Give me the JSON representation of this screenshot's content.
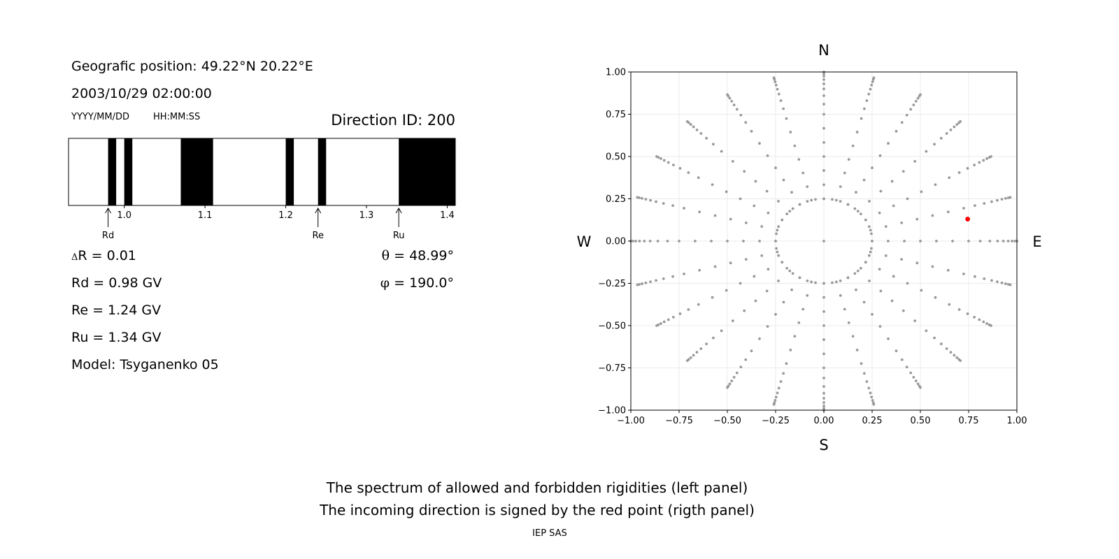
{
  "info": {
    "position": "Geografic position: 49.22°N 20.22°E",
    "datetime": "2003/10/29 02:00:00",
    "date_format": "YYYY/MM/DD",
    "time_format": "HH:MM:SS",
    "direction_id": "Direction ID: 200",
    "delta_r": "R = 0.01",
    "delta_symbol": "Δ",
    "rd": "Rd = 0.98 GV",
    "re": "Re = 1.24 GV",
    "ru": "Ru = 1.34 GV",
    "model": "Model: Tsyganenko 05",
    "theta_symbol": "θ",
    "theta_value": " = 48.99°",
    "phi_symbol": "φ",
    "phi_value": " = 190.0°"
  },
  "footer": {
    "line1": "The spectrum of allowed and forbidden rigidities (left panel)",
    "line2": "The incoming direction is signed by the red point (rigth panel)",
    "credit": "IEP SAS"
  },
  "chart_data": [
    {
      "type": "bar",
      "description_role": "rigidity spectrum",
      "xlim": [
        0.931,
        1.41
      ],
      "ticks": [
        1.0,
        1.1,
        1.2,
        1.3,
        1.4
      ],
      "tick_labels": [
        "1.0",
        "1.1",
        "1.2",
        "1.3",
        "1.4"
      ],
      "forbidden_bands": [
        [
          0.98,
          0.99
        ],
        [
          1.0,
          1.01
        ],
        [
          1.07,
          1.11
        ],
        [
          1.2,
          1.21
        ],
        [
          1.24,
          1.25
        ],
        [
          1.34,
          1.41
        ]
      ],
      "markers": [
        {
          "label": "Rd",
          "value": 0.98
        },
        {
          "label": "Re",
          "value": 1.24
        },
        {
          "label": "Ru",
          "value": 1.34
        }
      ],
      "colors": {
        "forbidden": "#000000",
        "allowed": "#ffffff"
      }
    },
    {
      "type": "scatter",
      "xlim": [
        -1,
        1
      ],
      "ylim": [
        -1,
        1
      ],
      "xticks": [
        -1.0,
        -0.75,
        -0.5,
        -0.25,
        0.0,
        0.25,
        0.5,
        0.75,
        1.0
      ],
      "xtick_labels": [
        "−1.00",
        "−0.75",
        "−0.50",
        "−0.25",
        "0.00",
        "0.25",
        "0.50",
        "0.75",
        "1.00"
      ],
      "yticks": [
        -1.0,
        -0.75,
        -0.5,
        -0.25,
        0.0,
        0.25,
        0.5,
        0.75,
        1.0
      ],
      "ytick_labels": [
        "−1.00",
        "−0.75",
        "−0.50",
        "−0.25",
        "0.00",
        "0.25",
        "0.50",
        "0.75",
        "1.00"
      ],
      "grid": true,
      "compass": {
        "top": "N",
        "bottom": "S",
        "left": "W",
        "right": "E"
      },
      "direction_grid": {
        "azimuth_step_deg": 15,
        "inner_ring_radius": 0.25,
        "radii_per_ray": [
          0.25,
          0.333,
          0.417,
          0.5,
          0.583,
          0.667,
          0.75,
          0.81,
          0.86,
          0.9,
          0.93,
          0.955,
          0.975,
          0.99,
          1.0
        ],
        "inner_circle_points": 36,
        "color": "#999999"
      },
      "selected_point": {
        "x": 0.745,
        "y": 0.13,
        "color": "#ff0000"
      }
    }
  ]
}
